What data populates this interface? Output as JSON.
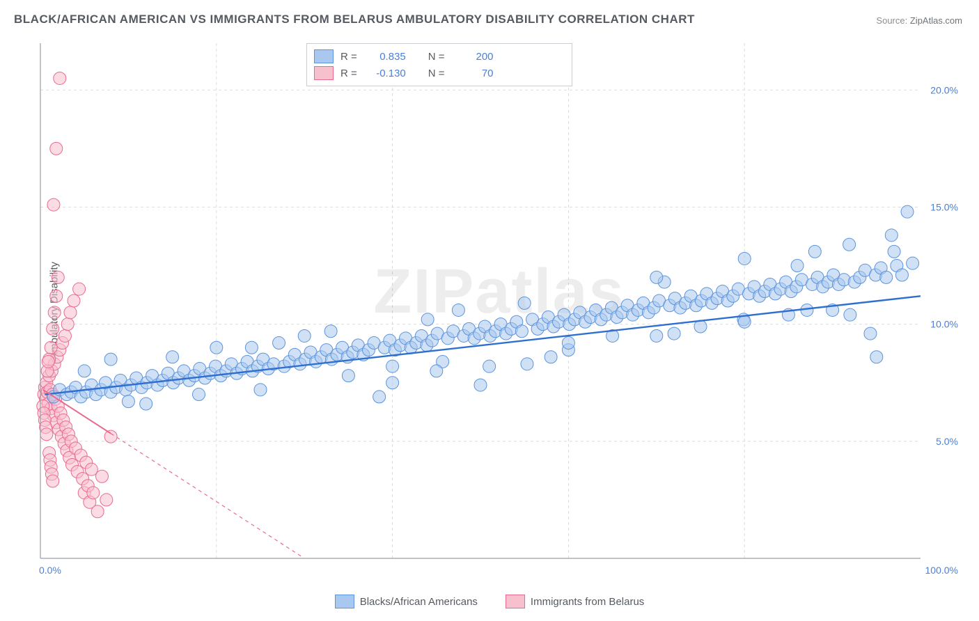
{
  "title": "BLACK/AFRICAN AMERICAN VS IMMIGRANTS FROM BELARUS AMBULATORY DISABILITY CORRELATION CHART",
  "source_label": "Source:",
  "source_value": "ZipAtlas.com",
  "ylabel": "Ambulatory Disability",
  "watermark": "ZIPatlas",
  "chart": {
    "type": "scatter",
    "xlim": [
      0,
      100
    ],
    "ylim": [
      0,
      22
    ],
    "x_ticks": [
      0,
      100
    ],
    "x_tick_labels": [
      "0.0%",
      "100.0%"
    ],
    "y_ticks": [
      5,
      10,
      15,
      20
    ],
    "y_tick_labels": [
      "5.0%",
      "10.0%",
      "15.0%",
      "20.0%"
    ],
    "grid_color": "#d9dbdd",
    "axis_color": "#9aa0a6",
    "background_color": "#ffffff",
    "series": [
      {
        "name": "Blacks/African Americans",
        "marker_fill": "#a9c8ef",
        "marker_stroke": "#5b94dd",
        "marker_opacity": 0.55,
        "marker_radius": 9,
        "trend_color": "#2f6fd0",
        "trend_width": 2.4,
        "trend_dash": "none",
        "trend": {
          "x1": 0.5,
          "y1": 7.0,
          "x2": 100,
          "y2": 11.2
        },
        "R": "0.835",
        "N": "200",
        "points": [
          [
            1.5,
            6.9
          ],
          [
            2.2,
            7.2
          ],
          [
            3.0,
            7.0
          ],
          [
            3.5,
            7.1
          ],
          [
            4.0,
            7.3
          ],
          [
            4.6,
            6.9
          ],
          [
            5.2,
            7.1
          ],
          [
            5.8,
            7.4
          ],
          [
            6.3,
            7.0
          ],
          [
            6.9,
            7.2
          ],
          [
            7.4,
            7.5
          ],
          [
            8.0,
            7.1
          ],
          [
            8.6,
            7.3
          ],
          [
            9.1,
            7.6
          ],
          [
            9.7,
            7.2
          ],
          [
            10.3,
            7.4
          ],
          [
            10.9,
            7.7
          ],
          [
            11.5,
            7.3
          ],
          [
            12.1,
            7.5
          ],
          [
            12.7,
            7.8
          ],
          [
            13.3,
            7.4
          ],
          [
            13.9,
            7.6
          ],
          [
            14.5,
            7.9
          ],
          [
            15.1,
            7.5
          ],
          [
            15.7,
            7.7
          ],
          [
            16.3,
            8.0
          ],
          [
            16.9,
            7.6
          ],
          [
            17.5,
            7.8
          ],
          [
            18.1,
            8.1
          ],
          [
            18.7,
            7.7
          ],
          [
            19.3,
            7.9
          ],
          [
            19.9,
            8.2
          ],
          [
            20.5,
            7.8
          ],
          [
            21.1,
            8.0
          ],
          [
            21.7,
            8.3
          ],
          [
            22.3,
            7.9
          ],
          [
            22.9,
            8.1
          ],
          [
            23.5,
            8.4
          ],
          [
            24.1,
            8.0
          ],
          [
            24.7,
            8.2
          ],
          [
            25.3,
            8.5
          ],
          [
            25.9,
            8.1
          ],
          [
            26.5,
            8.3
          ],
          [
            27.1,
            9.2
          ],
          [
            27.7,
            8.2
          ],
          [
            28.3,
            8.4
          ],
          [
            28.9,
            8.7
          ],
          [
            29.5,
            8.3
          ],
          [
            30.1,
            8.5
          ],
          [
            30.7,
            8.8
          ],
          [
            31.3,
            8.4
          ],
          [
            31.9,
            8.6
          ],
          [
            32.5,
            8.9
          ],
          [
            33.1,
            8.5
          ],
          [
            33.7,
            8.7
          ],
          [
            34.3,
            9.0
          ],
          [
            34.9,
            8.6
          ],
          [
            35.5,
            8.8
          ],
          [
            36.1,
            9.1
          ],
          [
            36.7,
            8.7
          ],
          [
            37.3,
            8.9
          ],
          [
            37.9,
            9.2
          ],
          [
            38.5,
            6.9
          ],
          [
            39.1,
            9.0
          ],
          [
            39.7,
            9.3
          ],
          [
            40.3,
            8.9
          ],
          [
            40.9,
            9.1
          ],
          [
            41.5,
            9.4
          ],
          [
            42.1,
            9.0
          ],
          [
            42.7,
            9.2
          ],
          [
            43.3,
            9.5
          ],
          [
            43.9,
            9.1
          ],
          [
            44.5,
            9.3
          ],
          [
            45.1,
            9.6
          ],
          [
            45.7,
            8.4
          ],
          [
            46.3,
            9.4
          ],
          [
            46.9,
            9.7
          ],
          [
            47.5,
            10.6
          ],
          [
            48.1,
            9.5
          ],
          [
            48.7,
            9.8
          ],
          [
            49.3,
            9.4
          ],
          [
            49.9,
            9.6
          ],
          [
            50.5,
            9.9
          ],
          [
            51.1,
            9.5
          ],
          [
            51.7,
            9.7
          ],
          [
            52.3,
            10.0
          ],
          [
            52.9,
            9.6
          ],
          [
            53.5,
            9.8
          ],
          [
            54.1,
            10.1
          ],
          [
            54.7,
            9.7
          ],
          [
            55.3,
            8.3
          ],
          [
            55.9,
            10.2
          ],
          [
            56.5,
            9.8
          ],
          [
            57.1,
            10.0
          ],
          [
            57.7,
            10.3
          ],
          [
            58.3,
            9.9
          ],
          [
            58.9,
            10.1
          ],
          [
            59.5,
            10.4
          ],
          [
            60.1,
            10.0
          ],
          [
            60.7,
            10.2
          ],
          [
            61.3,
            10.5
          ],
          [
            61.9,
            10.1
          ],
          [
            62.5,
            10.3
          ],
          [
            63.1,
            10.6
          ],
          [
            63.7,
            10.2
          ],
          [
            64.3,
            10.4
          ],
          [
            64.9,
            10.7
          ],
          [
            65.5,
            10.3
          ],
          [
            66.1,
            10.5
          ],
          [
            66.7,
            10.8
          ],
          [
            67.3,
            10.4
          ],
          [
            67.9,
            10.6
          ],
          [
            68.5,
            10.9
          ],
          [
            69.1,
            10.5
          ],
          [
            69.7,
            10.7
          ],
          [
            70.3,
            11.0
          ],
          [
            70.9,
            11.8
          ],
          [
            71.5,
            10.8
          ],
          [
            72.1,
            11.1
          ],
          [
            72.7,
            10.7
          ],
          [
            73.3,
            10.9
          ],
          [
            73.9,
            11.2
          ],
          [
            74.5,
            10.8
          ],
          [
            75.1,
            11.0
          ],
          [
            75.7,
            11.3
          ],
          [
            76.3,
            10.9
          ],
          [
            76.9,
            11.1
          ],
          [
            77.5,
            11.4
          ],
          [
            78.1,
            11.0
          ],
          [
            78.7,
            11.2
          ],
          [
            79.3,
            11.5
          ],
          [
            79.9,
            10.2
          ],
          [
            80.5,
            11.3
          ],
          [
            81.1,
            11.6
          ],
          [
            81.7,
            11.2
          ],
          [
            82.3,
            11.4
          ],
          [
            82.9,
            11.7
          ],
          [
            83.5,
            11.3
          ],
          [
            84.1,
            11.5
          ],
          [
            84.7,
            11.8
          ],
          [
            85.3,
            11.4
          ],
          [
            85.9,
            11.6
          ],
          [
            86.5,
            11.9
          ],
          [
            87.1,
            10.6
          ],
          [
            87.7,
            11.7
          ],
          [
            88.3,
            12.0
          ],
          [
            88.9,
            11.6
          ],
          [
            89.5,
            11.8
          ],
          [
            90.1,
            12.1
          ],
          [
            90.7,
            11.7
          ],
          [
            91.3,
            11.9
          ],
          [
            91.9,
            13.4
          ],
          [
            92.5,
            11.8
          ],
          [
            93.1,
            12.0
          ],
          [
            93.7,
            12.3
          ],
          [
            94.3,
            9.6
          ],
          [
            94.9,
            12.1
          ],
          [
            95.5,
            12.4
          ],
          [
            96.1,
            12.0
          ],
          [
            96.7,
            13.8
          ],
          [
            97.3,
            12.5
          ],
          [
            97.9,
            12.1
          ],
          [
            98.5,
            14.8
          ],
          [
            99.1,
            12.6
          ],
          [
            33.0,
            9.7
          ],
          [
            40.0,
            7.5
          ],
          [
            51.0,
            8.2
          ],
          [
            60.0,
            8.9
          ],
          [
            70.0,
            9.5
          ],
          [
            80.0,
            12.8
          ],
          [
            88.0,
            13.1
          ],
          [
            92.0,
            10.4
          ],
          [
            95.0,
            8.6
          ],
          [
            97.0,
            13.1
          ],
          [
            5.0,
            8.0
          ],
          [
            10.0,
            6.7
          ],
          [
            15.0,
            8.6
          ],
          [
            20.0,
            9.0
          ],
          [
            25.0,
            7.2
          ],
          [
            30.0,
            9.5
          ],
          [
            35.0,
            7.8
          ],
          [
            40.0,
            8.2
          ],
          [
            45.0,
            8.0
          ],
          [
            50.0,
            7.4
          ],
          [
            55.0,
            10.9
          ],
          [
            60.0,
            9.2
          ],
          [
            65.0,
            9.5
          ],
          [
            70.0,
            12.0
          ],
          [
            75.0,
            9.9
          ],
          [
            80.0,
            10.1
          ],
          [
            85.0,
            10.4
          ],
          [
            90.0,
            10.6
          ],
          [
            8.0,
            8.5
          ],
          [
            12.0,
            6.6
          ],
          [
            18.0,
            7.0
          ],
          [
            24.0,
            9.0
          ],
          [
            44.0,
            10.2
          ],
          [
            58.0,
            8.6
          ],
          [
            72.0,
            9.6
          ],
          [
            86.0,
            12.5
          ]
        ]
      },
      {
        "name": "Immigrants from Belarus",
        "marker_fill": "#f7c0cf",
        "marker_stroke": "#ea6a8d",
        "marker_opacity": 0.55,
        "marker_radius": 9,
        "trend_color": "#ea6a8d",
        "trend_width": 2.0,
        "trend_dash": "5 5",
        "trend_solid_until_x": 8,
        "trend": {
          "x1": 0.3,
          "y1": 7.2,
          "x2": 30,
          "y2": 0
        },
        "R": "-0.130",
        "N": "70",
        "points": [
          [
            0.4,
            7.0
          ],
          [
            0.5,
            7.3
          ],
          [
            0.6,
            6.8
          ],
          [
            0.7,
            7.5
          ],
          [
            0.8,
            7.1
          ],
          [
            0.9,
            6.6
          ],
          [
            1.0,
            7.8
          ],
          [
            1.1,
            7.2
          ],
          [
            1.2,
            6.4
          ],
          [
            1.3,
            8.0
          ],
          [
            1.4,
            7.0
          ],
          [
            1.5,
            6.1
          ],
          [
            1.6,
            8.3
          ],
          [
            1.7,
            6.8
          ],
          [
            1.8,
            5.8
          ],
          [
            1.9,
            8.6
          ],
          [
            2.0,
            6.5
          ],
          [
            2.1,
            5.5
          ],
          [
            2.2,
            8.9
          ],
          [
            2.3,
            6.2
          ],
          [
            2.4,
            5.2
          ],
          [
            2.5,
            9.2
          ],
          [
            2.6,
            5.9
          ],
          [
            2.7,
            4.9
          ],
          [
            2.8,
            9.5
          ],
          [
            2.9,
            5.6
          ],
          [
            3.0,
            4.6
          ],
          [
            3.1,
            10.0
          ],
          [
            3.2,
            5.3
          ],
          [
            3.3,
            4.3
          ],
          [
            3.4,
            10.5
          ],
          [
            3.5,
            5.0
          ],
          [
            3.6,
            4.0
          ],
          [
            3.8,
            11.0
          ],
          [
            4.0,
            4.7
          ],
          [
            4.2,
            3.7
          ],
          [
            4.4,
            11.5
          ],
          [
            4.6,
            4.4
          ],
          [
            4.8,
            3.4
          ],
          [
            5.0,
            2.8
          ],
          [
            5.2,
            4.1
          ],
          [
            5.4,
            3.1
          ],
          [
            5.6,
            2.4
          ],
          [
            5.8,
            3.8
          ],
          [
            6.0,
            2.8
          ],
          [
            6.5,
            2.0
          ],
          [
            7.0,
            3.5
          ],
          [
            7.5,
            2.5
          ],
          [
            8.0,
            5.2
          ],
          [
            1.0,
            8.5
          ],
          [
            1.2,
            9.0
          ],
          [
            1.4,
            9.8
          ],
          [
            1.6,
            10.5
          ],
          [
            1.8,
            11.2
          ],
          [
            2.0,
            12.0
          ],
          [
            0.3,
            6.5
          ],
          [
            0.4,
            6.2
          ],
          [
            0.5,
            5.9
          ],
          [
            0.6,
            5.6
          ],
          [
            0.7,
            5.3
          ],
          [
            1.5,
            15.1
          ],
          [
            1.8,
            17.5
          ],
          [
            2.2,
            20.5
          ],
          [
            0.8,
            8.0
          ],
          [
            0.9,
            8.4
          ],
          [
            1.0,
            4.5
          ],
          [
            1.1,
            4.2
          ],
          [
            1.2,
            3.9
          ],
          [
            1.3,
            3.6
          ],
          [
            1.4,
            3.3
          ]
        ]
      }
    ]
  },
  "legend_top": {
    "r_label": "R =",
    "n_label": "N ="
  },
  "legend_bottom": [
    {
      "label": "Blacks/African Americans",
      "fill": "#a9c8ef",
      "stroke": "#5b94dd"
    },
    {
      "label": "Immigrants from Belarus",
      "fill": "#f7c0cf",
      "stroke": "#ea6a8d"
    }
  ]
}
